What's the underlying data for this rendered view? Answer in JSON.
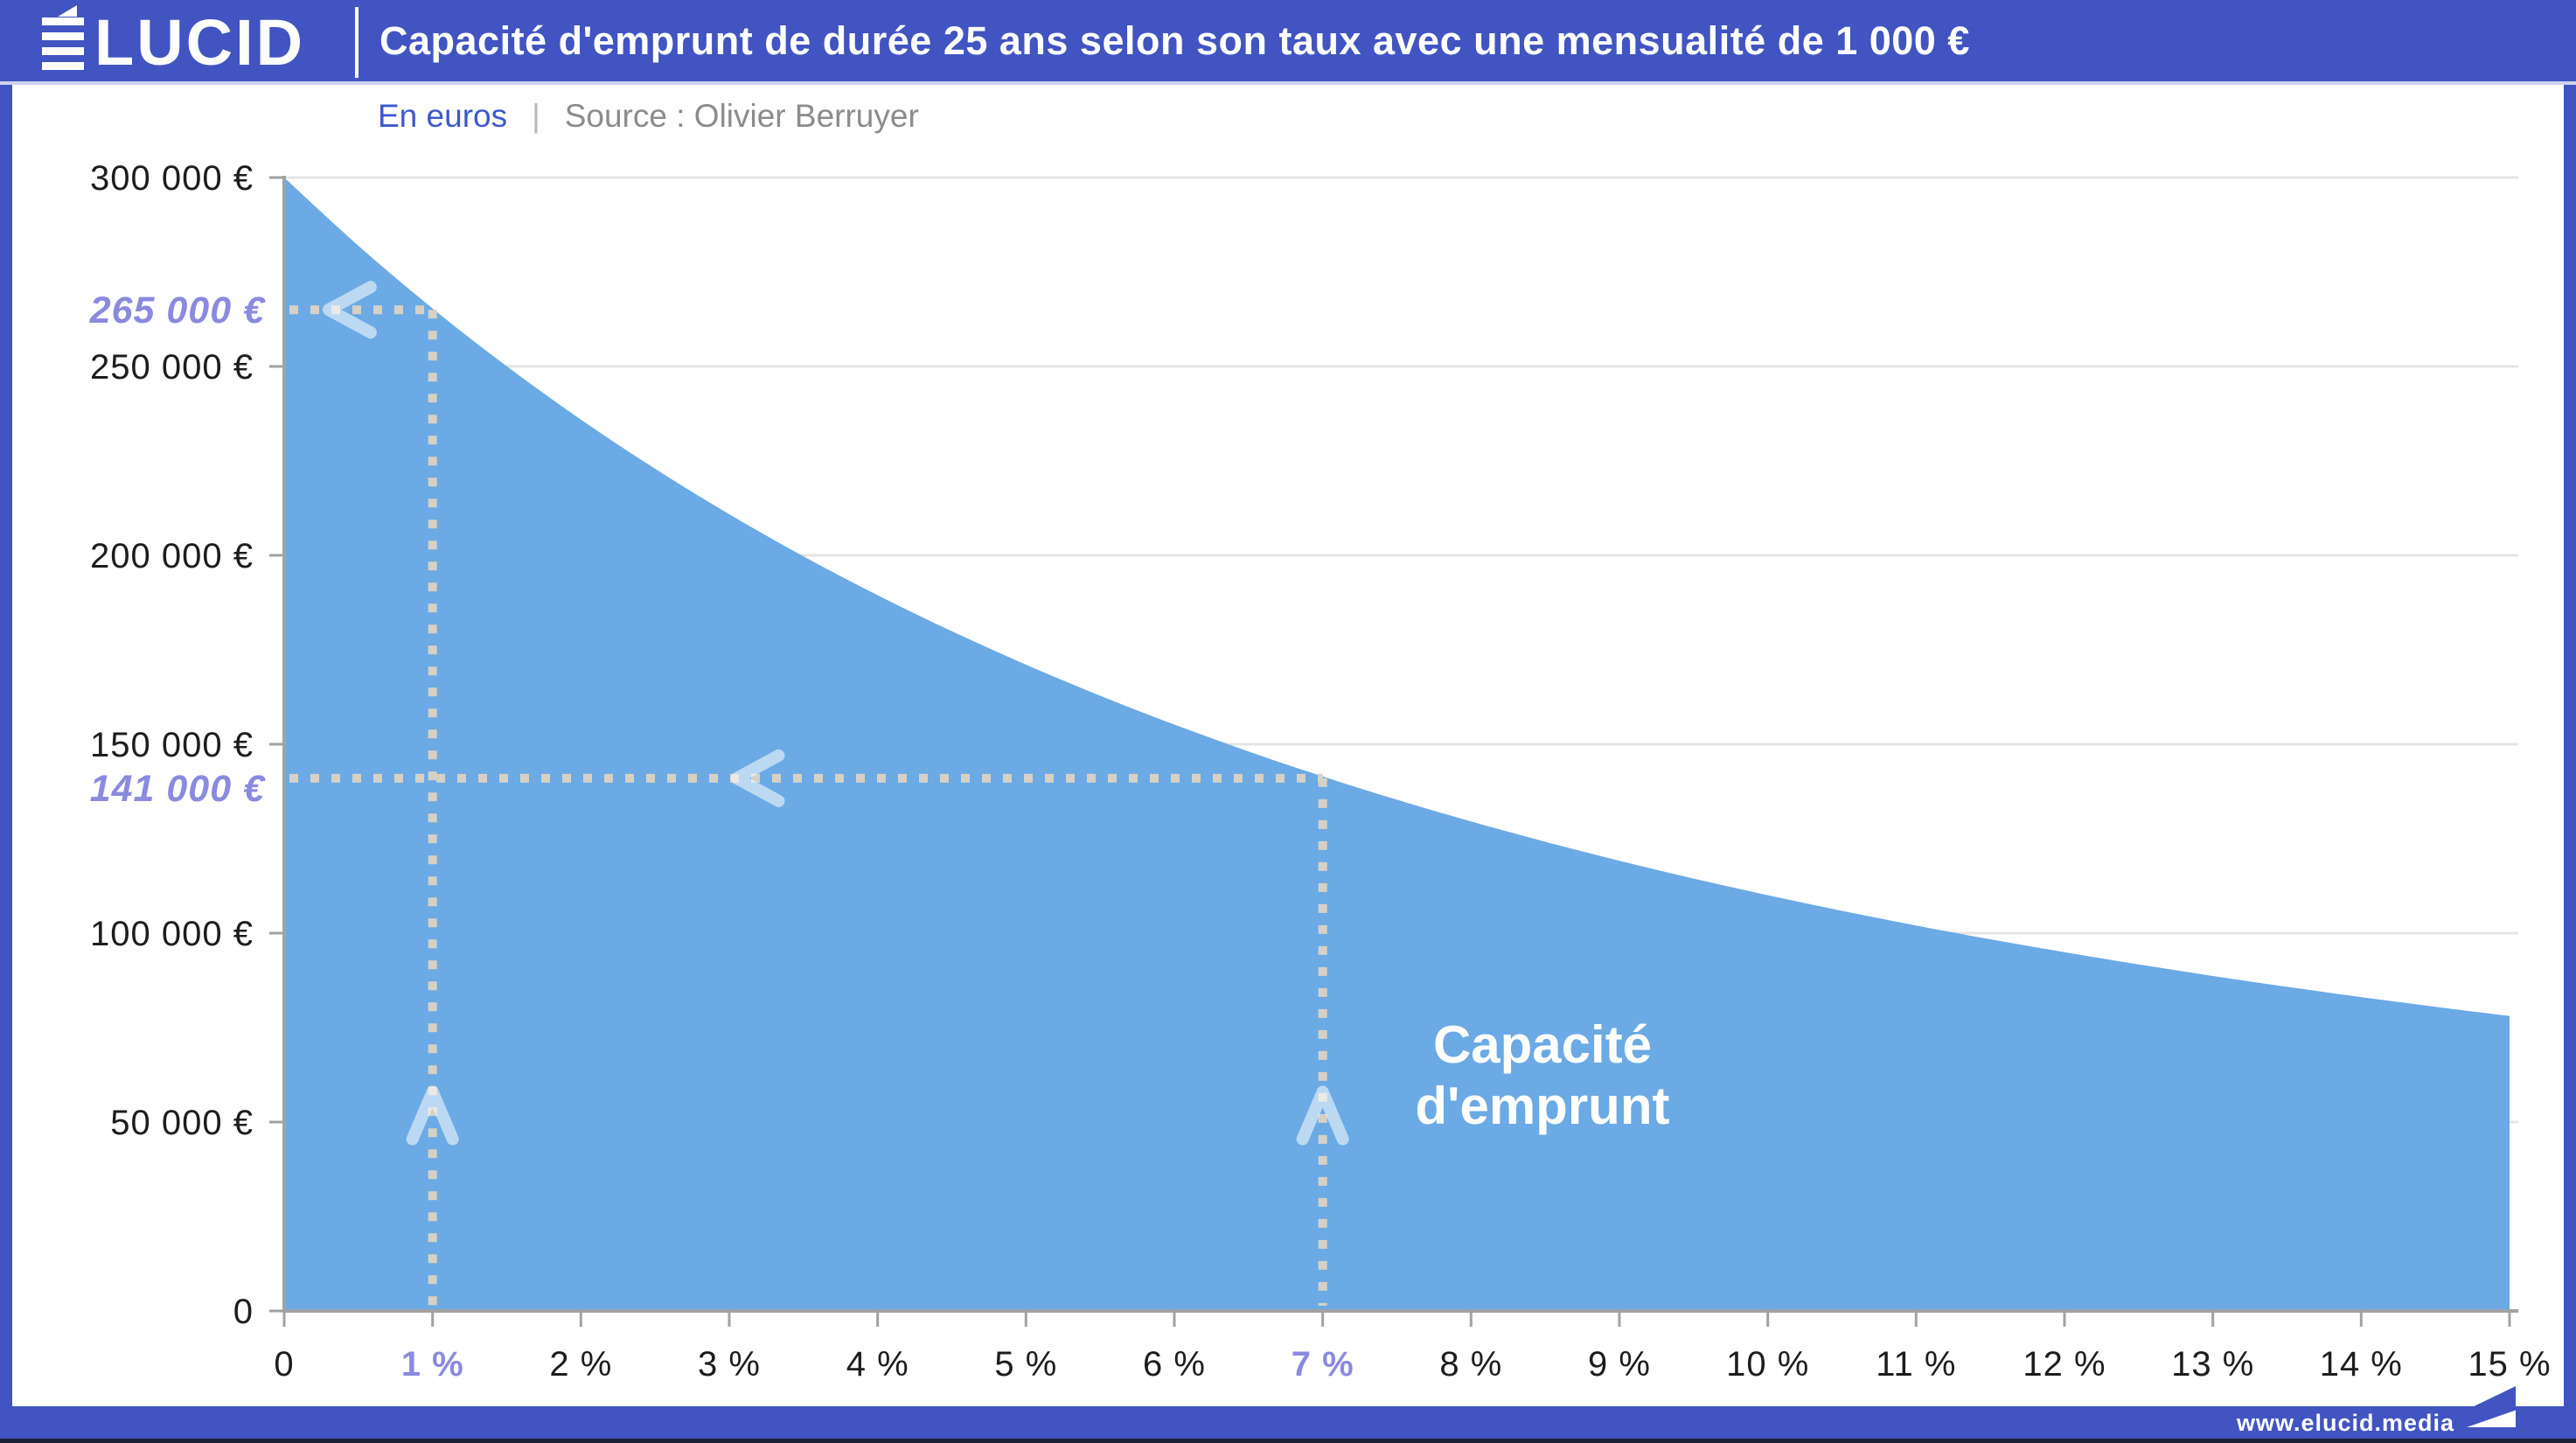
{
  "header": {
    "brand_full": "ÉLUCID",
    "brand_mark": "LUCID",
    "title": "Capacité d'emprunt de durée 25 ans selon son taux avec une mensualité de 1 000 €"
  },
  "subtitle": {
    "unit_label": "En euros",
    "separator": "|",
    "source": "Source : Olivier Berruyer"
  },
  "footer": {
    "url": "www.elucid.media"
  },
  "colors": {
    "brand_blue": "#4154C1",
    "chart_blue": "#6BAAE4",
    "highlight_purple": "#8A8ADF",
    "text_dark": "#1D1D1D",
    "text_gray": "#8C8C8C",
    "subtitle_blue": "#3D58CC",
    "grid_line": "#E4E4E4",
    "axis_line": "#A2A2A2",
    "dotted_line": "#D6D1C4",
    "arrow_white": "rgba(255,255,255,0.55)",
    "footer_dark_line": "#1A2038",
    "header_underline": "#CDD3F0"
  },
  "chart_data": {
    "type": "area",
    "title": "Capacité d'emprunt de durée 25 ans selon son taux avec une mensualité de 1 000 €",
    "xlabel": "",
    "ylabel": "En euros",
    "xlim": [
      0,
      15
    ],
    "ylim": [
      0,
      300000
    ],
    "grid": true,
    "legend_position": "none",
    "area_label": "Capacité\nd'emprunt",
    "series": [
      {
        "name": "Capacité d'emprunt",
        "x": [
          0,
          0.5,
          1,
          1.5,
          2,
          2.5,
          3,
          3.5,
          4,
          4.5,
          5,
          5.5,
          6,
          6.5,
          7,
          7.5,
          8,
          8.5,
          9,
          9.5,
          10,
          10.5,
          11,
          11.5,
          12,
          12.5,
          13,
          13.5,
          14,
          14.5,
          15
        ],
        "y": [
          300000,
          281950,
          265343,
          250047,
          235931,
          222912,
          210876,
          199748,
          189452,
          179910,
          171060,
          162843,
          155207,
          148105,
          141487,
          135320,
          129565,
          124192,
          119161,
          114456,
          110047,
          105912,
          102029,
          98380,
          94947,
          91713,
          88665,
          85789,
          83073,
          80505,
          78074
        ]
      }
    ],
    "y_ticks": [
      {
        "label": "0",
        "value": 0
      },
      {
        "label": "50 000 €",
        "value": 50000
      },
      {
        "label": "100 000 €",
        "value": 100000
      },
      {
        "label": "150 000 €",
        "value": 150000
      },
      {
        "label": "200 000 €",
        "value": 200000
      },
      {
        "label": "250 000 €",
        "value": 250000
      },
      {
        "label": "300 000 €",
        "value": 300000
      }
    ],
    "x_ticks": [
      {
        "label": "0",
        "value": 0,
        "highlight": false
      },
      {
        "label": "1 %",
        "value": 1,
        "highlight": true
      },
      {
        "label": "2 %",
        "value": 2,
        "highlight": false
      },
      {
        "label": "3 %",
        "value": 3,
        "highlight": false
      },
      {
        "label": "4 %",
        "value": 4,
        "highlight": false
      },
      {
        "label": "5 %",
        "value": 5,
        "highlight": false
      },
      {
        "label": "6 %",
        "value": 6,
        "highlight": false
      },
      {
        "label": "7 %",
        "value": 7,
        "highlight": true
      },
      {
        "label": "8 %",
        "value": 8,
        "highlight": false
      },
      {
        "label": "9 %",
        "value": 9,
        "highlight": false
      },
      {
        "label": "10 %",
        "value": 10,
        "highlight": false
      },
      {
        "label": "11 %",
        "value": 11,
        "highlight": false
      },
      {
        "label": "12 %",
        "value": 12,
        "highlight": false
      },
      {
        "label": "13 %",
        "value": 13,
        "highlight": false
      },
      {
        "label": "14 %",
        "value": 14,
        "highlight": false
      },
      {
        "label": "15 %",
        "value": 15,
        "highlight": false
      }
    ],
    "annotations": [
      {
        "rate": 1,
        "value": 265000,
        "label": "265 000 €",
        "arrow_rate": 0.3,
        "arrow_value": 51500,
        "label_dy": 15
      },
      {
        "rate": 7,
        "value": 141000,
        "label": "141 000 €",
        "arrow_rate": 3.05,
        "arrow_value": 51500,
        "label_dy": 26
      }
    ]
  }
}
